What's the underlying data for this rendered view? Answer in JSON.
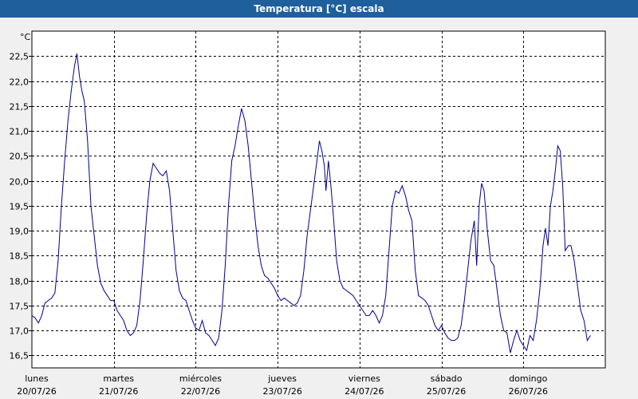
{
  "window": {
    "title": "Temperatura [°C] escala"
  },
  "chart_data": {
    "type": "line",
    "title": "",
    "ylabel": "°C",
    "xlabel": "",
    "ylim": [
      16.25,
      23.0
    ],
    "xlim": [
      0,
      7
    ],
    "grid": true,
    "line_color": "#00008b",
    "grid_color": "#000000",
    "yticks": [
      16.5,
      17.0,
      17.5,
      18.0,
      18.5,
      19.0,
      19.5,
      20.0,
      20.5,
      21.0,
      21.5,
      22.0,
      22.5
    ],
    "ytick_labels": [
      "16,5",
      "17,0",
      "17,5",
      "18,0",
      "18,5",
      "19,0",
      "19,5",
      "20,0",
      "20,5",
      "21,0",
      "21,5",
      "22,0",
      "22,5"
    ],
    "xticks": [
      {
        "x": 0,
        "day": "lunes",
        "date": "20/07/26"
      },
      {
        "x": 1,
        "day": "martes",
        "date": "21/07/26"
      },
      {
        "x": 2,
        "day": "miércoles",
        "date": "22/07/26"
      },
      {
        "x": 3,
        "day": "jueves",
        "date": "23/07/26"
      },
      {
        "x": 4,
        "day": "viernes",
        "date": "24/07/26"
      },
      {
        "x": 5,
        "day": "sábado",
        "date": "25/07/26"
      },
      {
        "x": 6,
        "day": "domingo",
        "date": "26/07/26"
      }
    ],
    "series": [
      {
        "points": [
          [
            0.0,
            17.3
          ],
          [
            0.04,
            17.25
          ],
          [
            0.08,
            17.15
          ],
          [
            0.12,
            17.3
          ],
          [
            0.16,
            17.55
          ],
          [
            0.2,
            17.6
          ],
          [
            0.24,
            17.65
          ],
          [
            0.28,
            17.75
          ],
          [
            0.32,
            18.4
          ],
          [
            0.36,
            19.5
          ],
          [
            0.4,
            20.4
          ],
          [
            0.44,
            21.2
          ],
          [
            0.48,
            21.8
          ],
          [
            0.52,
            22.3
          ],
          [
            0.55,
            22.55
          ],
          [
            0.58,
            22.1
          ],
          [
            0.61,
            21.8
          ],
          [
            0.64,
            21.6
          ],
          [
            0.68,
            20.8
          ],
          [
            0.72,
            19.5
          ],
          [
            0.76,
            18.9
          ],
          [
            0.8,
            18.3
          ],
          [
            0.84,
            17.95
          ],
          [
            0.88,
            17.8
          ],
          [
            0.92,
            17.7
          ],
          [
            0.96,
            17.6
          ],
          [
            1.0,
            17.6
          ],
          [
            1.04,
            17.4
          ],
          [
            1.08,
            17.3
          ],
          [
            1.12,
            17.2
          ],
          [
            1.16,
            17.0
          ],
          [
            1.2,
            16.9
          ],
          [
            1.24,
            16.95
          ],
          [
            1.28,
            17.1
          ],
          [
            1.32,
            17.6
          ],
          [
            1.36,
            18.4
          ],
          [
            1.4,
            19.3
          ],
          [
            1.44,
            20.0
          ],
          [
            1.48,
            20.35
          ],
          [
            1.52,
            20.25
          ],
          [
            1.56,
            20.15
          ],
          [
            1.6,
            20.1
          ],
          [
            1.64,
            20.2
          ],
          [
            1.68,
            19.8
          ],
          [
            1.72,
            19.0
          ],
          [
            1.76,
            18.2
          ],
          [
            1.8,
            17.8
          ],
          [
            1.84,
            17.65
          ],
          [
            1.88,
            17.6
          ],
          [
            1.92,
            17.4
          ],
          [
            1.96,
            17.2
          ],
          [
            2.0,
            17.05
          ],
          [
            2.04,
            17.0
          ],
          [
            2.08,
            17.2
          ],
          [
            2.12,
            16.95
          ],
          [
            2.16,
            16.9
          ],
          [
            2.2,
            16.8
          ],
          [
            2.24,
            16.7
          ],
          [
            2.28,
            16.85
          ],
          [
            2.32,
            17.4
          ],
          [
            2.36,
            18.3
          ],
          [
            2.4,
            19.5
          ],
          [
            2.44,
            20.4
          ],
          [
            2.48,
            20.7
          ],
          [
            2.52,
            21.1
          ],
          [
            2.56,
            21.45
          ],
          [
            2.6,
            21.2
          ],
          [
            2.64,
            20.7
          ],
          [
            2.68,
            20.0
          ],
          [
            2.72,
            19.3
          ],
          [
            2.76,
            18.7
          ],
          [
            2.8,
            18.3
          ],
          [
            2.84,
            18.1
          ],
          [
            2.88,
            18.05
          ],
          [
            2.92,
            17.95
          ],
          [
            2.96,
            17.85
          ],
          [
            3.0,
            17.7
          ],
          [
            3.04,
            17.6
          ],
          [
            3.08,
            17.65
          ],
          [
            3.12,
            17.6
          ],
          [
            3.16,
            17.55
          ],
          [
            3.2,
            17.5
          ],
          [
            3.24,
            17.55
          ],
          [
            3.28,
            17.7
          ],
          [
            3.32,
            18.2
          ],
          [
            3.36,
            18.9
          ],
          [
            3.4,
            19.4
          ],
          [
            3.44,
            19.9
          ],
          [
            3.48,
            20.4
          ],
          [
            3.51,
            20.8
          ],
          [
            3.54,
            20.6
          ],
          [
            3.57,
            20.3
          ],
          [
            3.59,
            19.8
          ],
          [
            3.62,
            20.4
          ],
          [
            3.65,
            19.9
          ],
          [
            3.68,
            19.3
          ],
          [
            3.72,
            18.4
          ],
          [
            3.76,
            18.0
          ],
          [
            3.8,
            17.85
          ],
          [
            3.84,
            17.8
          ],
          [
            3.88,
            17.75
          ],
          [
            3.92,
            17.7
          ],
          [
            3.96,
            17.6
          ],
          [
            4.0,
            17.5
          ],
          [
            4.04,
            17.4
          ],
          [
            4.08,
            17.3
          ],
          [
            4.12,
            17.3
          ],
          [
            4.16,
            17.4
          ],
          [
            4.2,
            17.3
          ],
          [
            4.24,
            17.15
          ],
          [
            4.28,
            17.3
          ],
          [
            4.32,
            17.7
          ],
          [
            4.36,
            18.6
          ],
          [
            4.4,
            19.5
          ],
          [
            4.44,
            19.8
          ],
          [
            4.48,
            19.75
          ],
          [
            4.52,
            19.9
          ],
          [
            4.56,
            19.7
          ],
          [
            4.6,
            19.4
          ],
          [
            4.64,
            19.2
          ],
          [
            4.68,
            18.2
          ],
          [
            4.72,
            17.7
          ],
          [
            4.76,
            17.65
          ],
          [
            4.8,
            17.6
          ],
          [
            4.84,
            17.5
          ],
          [
            4.88,
            17.3
          ],
          [
            4.92,
            17.1
          ],
          [
            4.96,
            17.0
          ],
          [
            5.0,
            17.1
          ],
          [
            5.04,
            16.95
          ],
          [
            5.08,
            16.85
          ],
          [
            5.12,
            16.8
          ],
          [
            5.16,
            16.8
          ],
          [
            5.2,
            16.85
          ],
          [
            5.24,
            17.1
          ],
          [
            5.28,
            17.6
          ],
          [
            5.32,
            18.2
          ],
          [
            5.36,
            18.8
          ],
          [
            5.4,
            19.2
          ],
          [
            5.43,
            18.3
          ],
          [
            5.46,
            19.5
          ],
          [
            5.49,
            19.95
          ],
          [
            5.52,
            19.8
          ],
          [
            5.56,
            19.0
          ],
          [
            5.6,
            18.4
          ],
          [
            5.64,
            18.3
          ],
          [
            5.68,
            17.8
          ],
          [
            5.72,
            17.3
          ],
          [
            5.76,
            17.0
          ],
          [
            5.8,
            16.95
          ],
          [
            5.84,
            16.55
          ],
          [
            5.88,
            16.8
          ],
          [
            5.92,
            17.0
          ],
          [
            5.96,
            16.8
          ],
          [
            6.0,
            16.7
          ],
          [
            6.04,
            16.6
          ],
          [
            6.08,
            16.9
          ],
          [
            6.12,
            16.8
          ],
          [
            6.16,
            17.2
          ],
          [
            6.2,
            17.8
          ],
          [
            6.24,
            18.7
          ],
          [
            6.27,
            19.05
          ],
          [
            6.3,
            18.7
          ],
          [
            6.33,
            19.5
          ],
          [
            6.36,
            19.8
          ],
          [
            6.39,
            20.2
          ],
          [
            6.42,
            20.7
          ],
          [
            6.45,
            20.6
          ],
          [
            6.48,
            19.9
          ],
          [
            6.51,
            18.6
          ],
          [
            6.55,
            18.7
          ],
          [
            6.58,
            18.7
          ],
          [
            6.62,
            18.4
          ],
          [
            6.66,
            17.9
          ],
          [
            6.7,
            17.4
          ],
          [
            6.74,
            17.2
          ],
          [
            6.78,
            16.8
          ],
          [
            6.82,
            16.9
          ]
        ]
      }
    ]
  }
}
